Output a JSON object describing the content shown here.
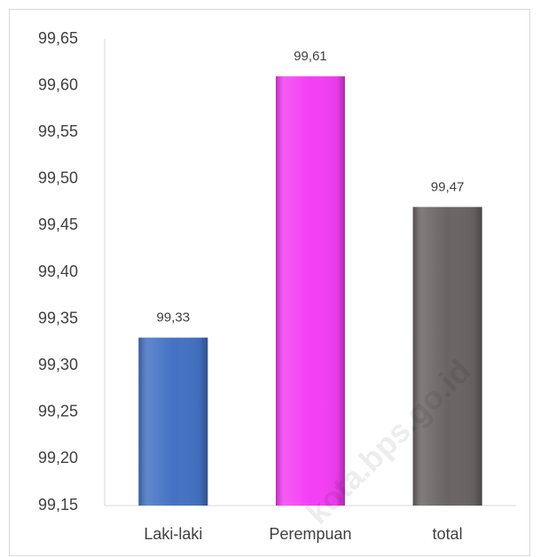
{
  "chart_data": {
    "type": "bar",
    "categories": [
      "Laki-laki",
      "Perempuan",
      "total"
    ],
    "values": [
      99.33,
      99.61,
      99.47
    ],
    "value_labels": [
      "99,33",
      "99,61",
      "99,47"
    ],
    "colors": [
      "#4472c4",
      "#f43ef4",
      "#6b6464"
    ],
    "ylim": [
      99.15,
      99.65
    ],
    "yticks": [
      {
        "value": 99.15,
        "label": "99,15"
      },
      {
        "value": 99.2,
        "label": "99,20"
      },
      {
        "value": 99.25,
        "label": "99,25"
      },
      {
        "value": 99.3,
        "label": "99,30"
      },
      {
        "value": 99.35,
        "label": "99,35"
      },
      {
        "value": 99.4,
        "label": "99,40"
      },
      {
        "value": 99.45,
        "label": "99,45"
      },
      {
        "value": 99.5,
        "label": "99,50"
      },
      {
        "value": 99.55,
        "label": "99,55"
      },
      {
        "value": 99.6,
        "label": "99,60"
      },
      {
        "value": 99.65,
        "label": "99,65"
      }
    ],
    "grid": false,
    "watermark": "kota.bps.go.id"
  }
}
